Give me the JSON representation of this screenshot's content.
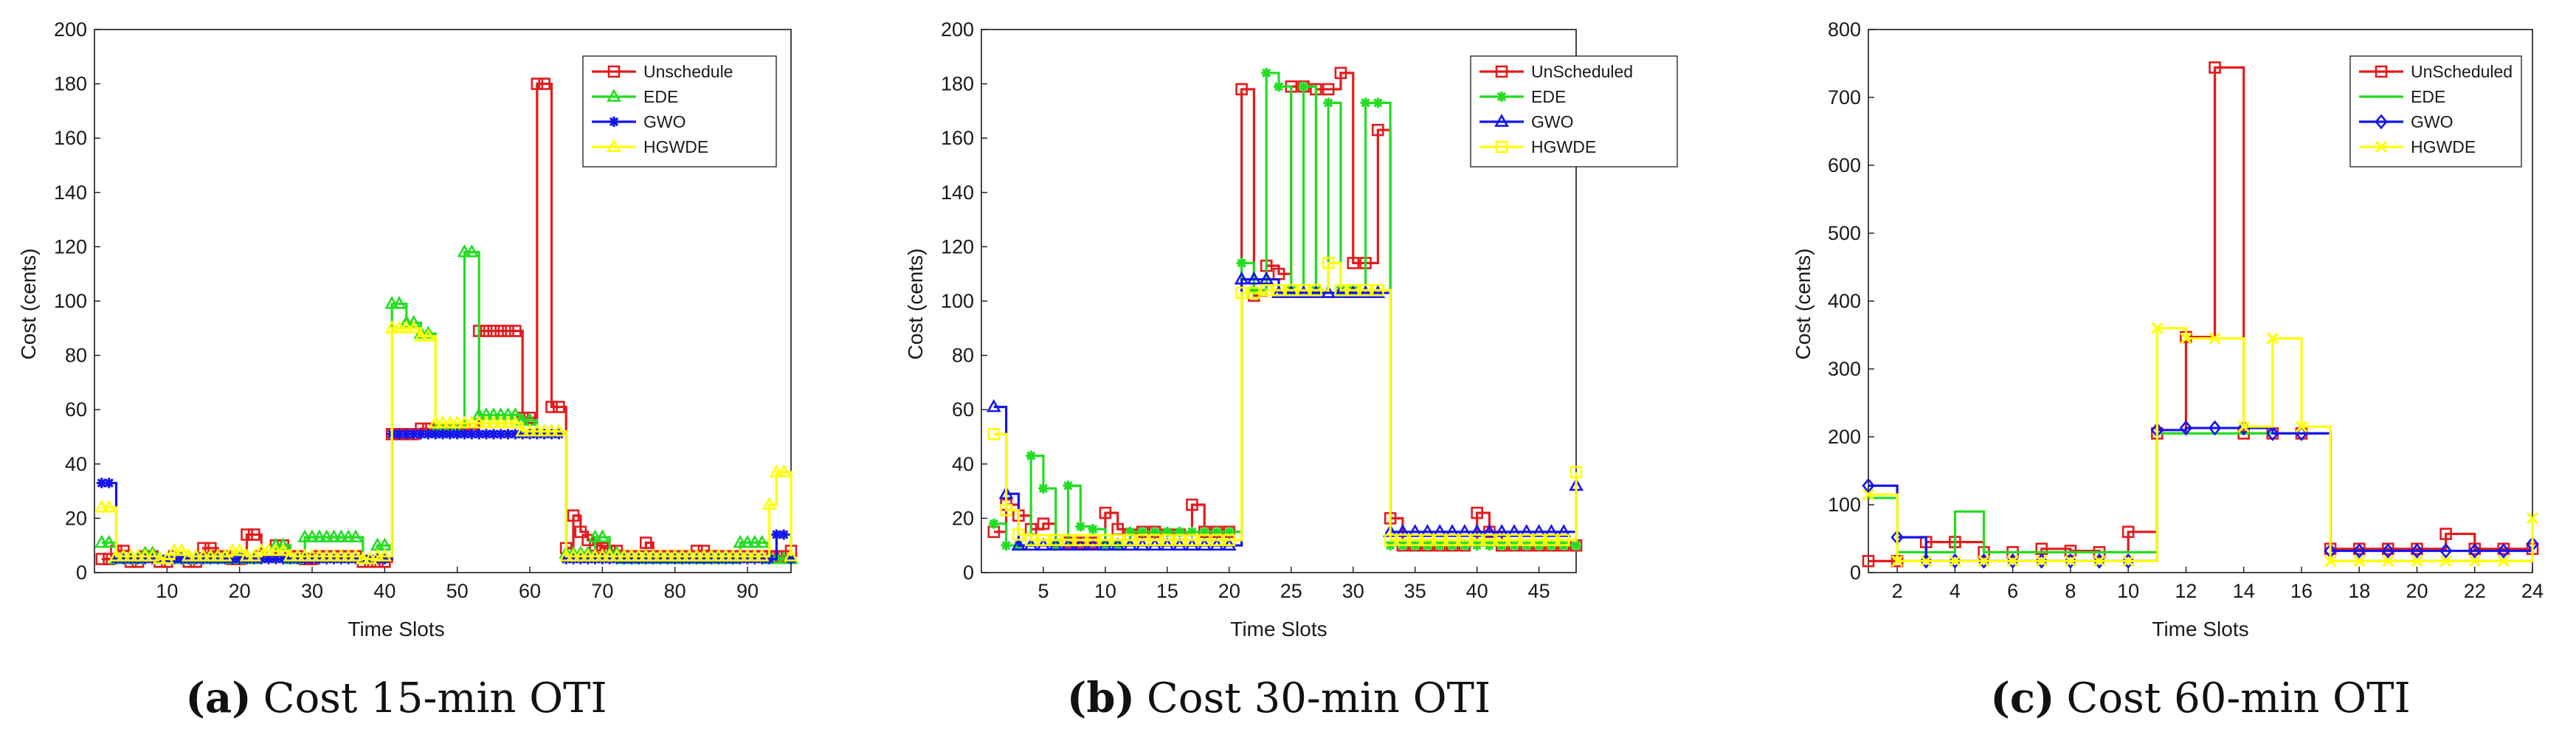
{
  "chart_data": [
    {
      "type": "line",
      "step": true,
      "caption_letter": "(a)",
      "caption_text": "Cost 15-min OTI",
      "xlabel": "Time Slots",
      "ylabel": "Cost (cents)",
      "xlim": [
        0,
        96
      ],
      "ylim": [
        0,
        200
      ],
      "xticks": [
        "10",
        "20",
        "30",
        "40",
        "50",
        "60",
        "70",
        "80",
        "90"
      ],
      "yticks": [
        "0",
        "20",
        "40",
        "60",
        "80",
        "100",
        "120",
        "140",
        "160",
        "180",
        "200"
      ],
      "grid": true,
      "legend_position": "top-right",
      "series": [
        {
          "name": "Unschedule",
          "color": "#e41a1c",
          "marker": "square",
          "values": [
            5,
            5,
            8,
            8,
            4,
            4,
            6,
            6,
            4,
            4,
            6,
            6,
            4,
            4,
            9,
            9,
            6,
            6,
            5,
            5,
            14,
            14,
            6,
            6,
            10,
            10,
            6,
            6,
            5,
            5,
            6,
            6,
            6,
            6,
            6,
            6,
            4,
            4,
            4,
            4,
            51,
            51,
            51,
            51,
            53,
            53,
            53,
            53,
            53,
            53,
            53,
            53,
            89,
            89,
            89,
            89,
            89,
            89,
            57,
            57,
            180,
            180,
            61,
            61,
            9,
            21,
            15,
            12,
            10,
            9,
            8,
            8,
            6,
            6,
            6,
            11,
            6,
            6,
            6,
            6,
            6,
            6,
            8,
            8,
            6,
            6,
            6,
            6,
            6,
            6,
            6,
            6,
            6,
            6,
            6,
            8
          ]
        },
        {
          "name": "EDE",
          "color": "#22dd22",
          "marker": "triangle",
          "values": [
            11,
            11,
            5,
            5,
            5,
            5,
            7,
            7,
            5,
            5,
            5,
            5,
            5,
            5,
            5,
            5,
            5,
            5,
            5,
            5,
            5,
            5,
            8,
            8,
            10,
            10,
            5,
            5,
            13,
            13,
            13,
            13,
            13,
            13,
            13,
            13,
            5,
            5,
            10,
            10,
            99,
            99,
            92,
            92,
            88,
            88,
            52,
            52,
            52,
            52,
            118,
            118,
            58,
            58,
            58,
            58,
            58,
            58,
            56,
            56,
            52,
            52,
            52,
            52,
            7,
            7,
            7,
            7,
            13,
            13,
            7,
            7,
            5,
            5,
            5,
            5,
            5,
            5,
            5,
            5,
            5,
            5,
            5,
            5,
            5,
            5,
            5,
            5,
            11,
            11,
            11,
            11,
            5,
            5,
            5,
            5
          ]
        },
        {
          "name": "GWO",
          "color": "#1515ee",
          "marker": "star",
          "values": [
            33,
            33,
            5,
            5,
            5,
            5,
            5,
            5,
            5,
            5,
            5,
            5,
            5,
            5,
            5,
            5,
            5,
            5,
            5,
            5,
            5,
            5,
            5,
            5,
            5,
            5,
            5,
            5,
            5,
            5,
            5,
            5,
            5,
            5,
            5,
            5,
            5,
            5,
            5,
            5,
            51,
            51,
            51,
            51,
            51,
            51,
            51,
            51,
            51,
            51,
            51,
            51,
            51,
            51,
            51,
            51,
            51,
            51,
            51,
            51,
            51,
            51,
            51,
            51,
            5,
            5,
            5,
            5,
            5,
            5,
            5,
            5,
            5,
            5,
            5,
            5,
            5,
            5,
            5,
            5,
            5,
            5,
            5,
            5,
            5,
            5,
            5,
            5,
            5,
            5,
            5,
            5,
            5,
            14,
            14,
            5
          ]
        },
        {
          "name": "HGWDE",
          "color": "#ffff00",
          "marker": "triangle",
          "values": [
            24,
            24,
            6,
            6,
            6,
            6,
            6,
            6,
            5,
            5,
            8,
            8,
            6,
            6,
            6,
            6,
            6,
            6,
            8,
            8,
            6,
            6,
            8,
            8,
            8,
            8,
            6,
            6,
            6,
            6,
            6,
            6,
            6,
            6,
            6,
            6,
            5,
            5,
            6,
            6,
            90,
            90,
            90,
            90,
            87,
            87,
            55,
            55,
            55,
            55,
            55,
            55,
            55,
            55,
            55,
            55,
            55,
            55,
            52,
            52,
            52,
            52,
            52,
            52,
            6,
            6,
            6,
            6,
            6,
            6,
            6,
            6,
            6,
            6,
            6,
            6,
            6,
            6,
            6,
            6,
            6,
            6,
            6,
            6,
            6,
            6,
            6,
            6,
            6,
            6,
            6,
            6,
            25,
            37,
            37,
            6
          ]
        }
      ]
    },
    {
      "type": "line",
      "step": true,
      "caption_letter": "(b)",
      "caption_text": "Cost 30-min OTI",
      "xlabel": "Time Slots",
      "ylabel": "Cost (cents)",
      "xlim": [
        0,
        48
      ],
      "ylim": [
        0,
        200
      ],
      "xticks": [
        "5",
        "10",
        "15",
        "20",
        "25",
        "30",
        "35",
        "40",
        "45"
      ],
      "yticks": [
        "0",
        "20",
        "40",
        "60",
        "80",
        "100",
        "120",
        "140",
        "160",
        "180",
        "200"
      ],
      "grid": true,
      "legend_position": "top-right",
      "series": [
        {
          "name": "UnScheduled",
          "color": "#e41a1c",
          "marker": "square",
          "values": [
            15,
            25,
            21,
            16,
            18,
            12,
            11,
            11,
            11,
            22,
            16,
            14,
            15,
            15,
            14,
            14,
            25,
            15,
            15,
            15,
            178,
            102,
            113,
            110,
            179,
            179,
            178,
            178,
            184,
            114,
            114,
            163,
            20,
            10,
            10,
            10,
            10,
            10,
            10,
            22,
            15,
            10,
            10,
            10,
            10,
            10,
            10,
            10
          ]
        },
        {
          "name": "EDE",
          "color": "#22dd22",
          "marker": "star",
          "values": [
            18,
            10,
            10,
            43,
            31,
            10,
            32,
            17,
            16,
            10,
            10,
            15,
            15,
            15,
            15,
            15,
            15,
            15,
            15,
            15,
            114,
            104,
            184,
            179,
            104,
            179,
            104,
            173,
            104,
            104,
            173,
            173,
            10,
            10,
            10,
            10,
            10,
            10,
            10,
            10,
            10,
            10,
            10,
            10,
            10,
            10,
            10,
            10
          ]
        },
        {
          "name": "GWO",
          "color": "#1515ee",
          "marker": "triangle",
          "values": [
            61,
            29,
            10,
            10,
            10,
            10,
            10,
            10,
            10,
            10,
            10,
            10,
            10,
            10,
            10,
            10,
            10,
            10,
            10,
            10,
            108,
            108,
            108,
            103,
            103,
            103,
            103,
            103,
            103,
            103,
            103,
            103,
            15,
            15,
            15,
            15,
            15,
            15,
            15,
            15,
            15,
            15,
            15,
            15,
            15,
            15,
            15,
            32
          ]
        },
        {
          "name": "HGWDE",
          "color": "#ffff00",
          "marker": "square",
          "values": [
            51,
            23,
            14,
            12,
            12,
            12,
            12,
            12,
            12,
            12,
            12,
            12,
            12,
            12,
            12,
            12,
            12,
            12,
            12,
            12,
            103,
            103,
            104,
            104,
            104,
            104,
            104,
            114,
            104,
            104,
            104,
            104,
            12,
            12,
            12,
            12,
            12,
            12,
            12,
            12,
            12,
            12,
            12,
            12,
            12,
            12,
            12,
            37
          ]
        }
      ]
    },
    {
      "type": "line",
      "step": true,
      "caption_letter": "(c)",
      "caption_text": "Cost 60-min OTI",
      "xlabel": "Time Slots",
      "ylabel": "Cost (cents)",
      "xlim": [
        1,
        24
      ],
      "ylim": [
        0,
        800
      ],
      "xticks": [
        "2",
        "4",
        "6",
        "8",
        "10",
        "12",
        "14",
        "16",
        "18",
        "20",
        "22",
        "24"
      ],
      "yticks": [
        "0",
        "100",
        "200",
        "300",
        "400",
        "500",
        "600",
        "700",
        "800"
      ],
      "grid": true,
      "legend_position": "top-right",
      "series": [
        {
          "name": "UnScheduled",
          "color": "#e41a1c",
          "marker": "square",
          "values": [
            17,
            17,
            45,
            45,
            30,
            30,
            35,
            32,
            30,
            60,
            205,
            347,
            744,
            205,
            205,
            205,
            35,
            35,
            35,
            35,
            57,
            35,
            35,
            35
          ]
        },
        {
          "name": "EDE",
          "color": "#22dd22",
          "marker": "none",
          "values": [
            110,
            30,
            30,
            90,
            30,
            30,
            30,
            30,
            30,
            30,
            205,
            205,
            205,
            205,
            205,
            205,
            17,
            17,
            17,
            17,
            17,
            17,
            17,
            17
          ]
        },
        {
          "name": "GWO",
          "color": "#1515ee",
          "marker": "diamond",
          "values": [
            128,
            52,
            17,
            17,
            17,
            17,
            17,
            17,
            17,
            17,
            210,
            213,
            213,
            213,
            205,
            205,
            32,
            32,
            32,
            32,
            32,
            32,
            32,
            42
          ]
        },
        {
          "name": "HGWDE",
          "color": "#ffff00",
          "marker": "x",
          "values": [
            115,
            17,
            17,
            17,
            17,
            17,
            17,
            17,
            17,
            17,
            360,
            345,
            345,
            215,
            345,
            215,
            17,
            17,
            17,
            17,
            17,
            17,
            17,
            80
          ]
        }
      ]
    }
  ]
}
